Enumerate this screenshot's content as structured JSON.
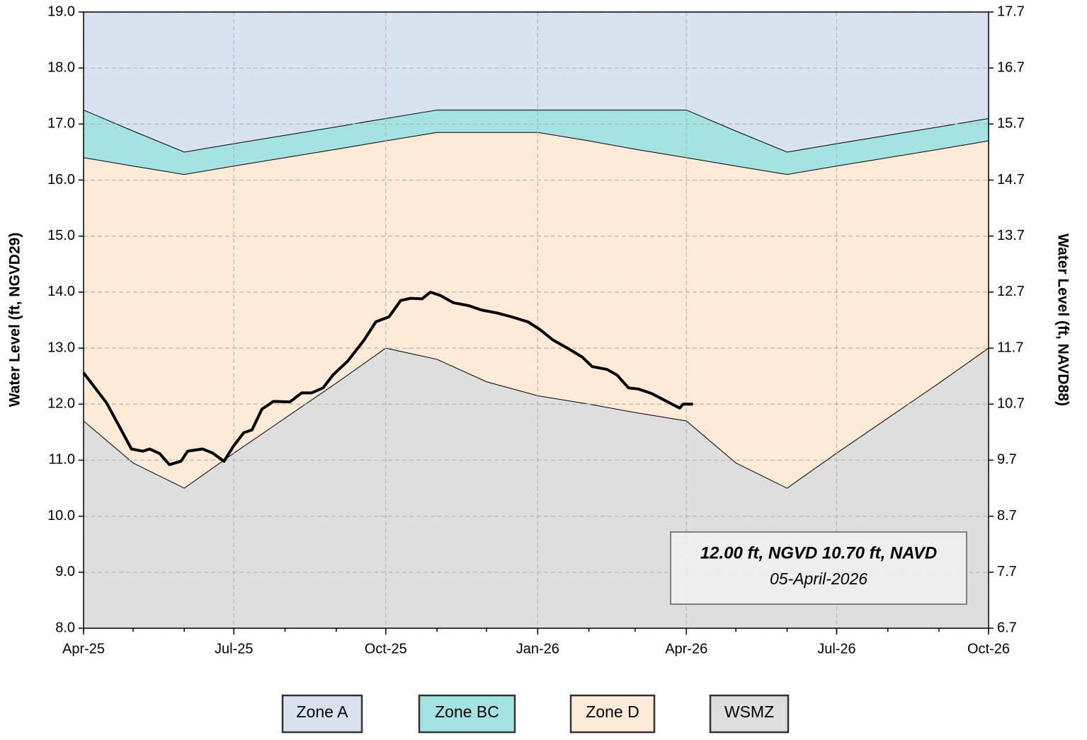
{
  "chart_data": {
    "type": "area",
    "ylabel": "Water Level (ft, NGVD29)",
    "y2label": "Water Level (ft, NAVD88)",
    "x": [
      "2025-04",
      "2025-05",
      "2025-06",
      "2025-07",
      "2025-08",
      "2025-09",
      "2025-10",
      "2025-11",
      "2025-12",
      "2026-01",
      "2026-02",
      "2026-03",
      "2026-04",
      "2026-05",
      "2026-06",
      "2026-07",
      "2026-08",
      "2026-09",
      "2026-10"
    ],
    "xlim": [
      "2025-04",
      "2026-10"
    ],
    "xticks": [
      {
        "value": "2025-04",
        "label": "Apr-25"
      },
      {
        "value": "2025-07",
        "label": "Jul-25"
      },
      {
        "value": "2025-10",
        "label": "Oct-25"
      },
      {
        "value": "2026-01",
        "label": "Jan-26"
      },
      {
        "value": "2026-04",
        "label": "Apr-26"
      },
      {
        "value": "2026-07",
        "label": "Jul-26"
      },
      {
        "value": "2026-10",
        "label": "Oct-26"
      }
    ],
    "ylim": [
      8,
      19
    ],
    "yticks": [
      {
        "value": 8,
        "label": "8.0"
      },
      {
        "value": 9,
        "label": "9.0"
      },
      {
        "value": 10,
        "label": "10.0"
      },
      {
        "value": 11,
        "label": "11.0"
      },
      {
        "value": 12,
        "label": "12.0"
      },
      {
        "value": 13,
        "label": "13.0"
      },
      {
        "value": 14,
        "label": "14.0"
      },
      {
        "value": 15,
        "label": "15.0"
      },
      {
        "value": 16,
        "label": "16.0"
      },
      {
        "value": 17,
        "label": "17.0"
      },
      {
        "value": 18,
        "label": "18.0"
      },
      {
        "value": 19,
        "label": "19.0"
      }
    ],
    "y2lim": [
      6.7,
      17.7
    ],
    "y2ticks": [
      6.7,
      7.7,
      8.7,
      9.7,
      10.7,
      11.7,
      12.7,
      13.7,
      14.7,
      15.7,
      16.7,
      17.7
    ],
    "grid": true,
    "legend": "bottom",
    "series": [
      {
        "name": "Zone A",
        "color": "#d9e3ef",
        "values": [
          19,
          19,
          19,
          19,
          19,
          19,
          19,
          19,
          19,
          19,
          19,
          19,
          19,
          19,
          19,
          19,
          19,
          19,
          19
        ]
      },
      {
        "name": "Zone BC",
        "color": "#a3e4e2",
        "values": [
          17.25,
          16.875,
          16.5,
          16.65,
          16.8,
          16.95,
          17.1,
          17.25,
          17.25,
          17.25,
          17.25,
          17.25,
          17.25,
          16.875,
          16.5,
          16.65,
          16.8,
          16.95,
          17.1
        ]
      },
      {
        "name": "Zone D",
        "color": "#fdebd7",
        "values": [
          16.4,
          16.25,
          16.1,
          16.25,
          16.4,
          16.55,
          16.7,
          16.85,
          16.85,
          16.85,
          16.7,
          16.55,
          16.4,
          16.25,
          16.1,
          16.25,
          16.4,
          16.55,
          16.7
        ]
      },
      {
        "name": "WSMZ",
        "color": "#dedede",
        "values": [
          11.7,
          10.95,
          10.5,
          11.125,
          11.75,
          12.375,
          13.0,
          12.8,
          12.4,
          12.15,
          12.0,
          11.85,
          11.7,
          10.95,
          10.5,
          11.125,
          11.75,
          12.375,
          13.0
        ]
      }
    ],
    "line": {
      "type": "line",
      "color": "#000000",
      "x": [
        "2025-04-01",
        "2025-04-15",
        "2025-04-30",
        "2025-05-07",
        "2025-05-11",
        "2025-05-17",
        "2025-05-23",
        "2025-05-30",
        "2025-06-03",
        "2025-06-12",
        "2025-06-18",
        "2025-06-25",
        "2025-07-01",
        "2025-07-07",
        "2025-07-12",
        "2025-07-18",
        "2025-07-25",
        "2025-08-04",
        "2025-08-11",
        "2025-08-17",
        "2025-08-24",
        "2025-08-30",
        "2025-09-08",
        "2025-09-18",
        "2025-09-25",
        "2025-10-03",
        "2025-10-10",
        "2025-10-16",
        "2025-10-23",
        "2025-10-28",
        "2025-11-03",
        "2025-11-11",
        "2025-11-20",
        "2025-11-28",
        "2025-12-07",
        "2025-12-16",
        "2025-12-26",
        "2026-01-02",
        "2026-01-10",
        "2026-01-19",
        "2026-01-28",
        "2026-02-03",
        "2026-02-12",
        "2026-02-18",
        "2026-02-25",
        "2026-03-03",
        "2026-03-11",
        "2026-03-22",
        "2026-03-28",
        "2026-03-30",
        "2026-04-05"
      ],
      "values": [
        12.56,
        12.02,
        11.2,
        11.16,
        11.2,
        11.12,
        10.92,
        10.98,
        11.16,
        11.2,
        11.13,
        10.98,
        11.26,
        11.49,
        11.54,
        11.91,
        12.05,
        12.04,
        12.2,
        12.2,
        12.29,
        12.52,
        12.77,
        13.15,
        13.47,
        13.56,
        13.85,
        13.89,
        13.88,
        14.0,
        13.94,
        13.81,
        13.76,
        13.68,
        13.63,
        13.56,
        13.47,
        13.34,
        13.15,
        13.0,
        12.84,
        12.67,
        12.62,
        12.52,
        12.29,
        12.27,
        12.19,
        12.02,
        11.93,
        12.0,
        12.0
      ]
    },
    "annotation": {
      "line1": "12.00 ft, NGVD 10.70 ft, NAVD",
      "line2": "05-April-2026"
    }
  }
}
